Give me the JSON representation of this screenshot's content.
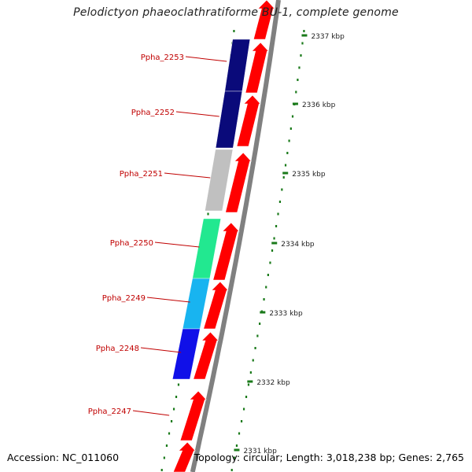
{
  "title": "Pelodictyon phaeoclathratiforme BU-1, complete genome",
  "footer": {
    "accession": "Accession: NC_011060",
    "topology": "Topology: circular; Length: 3,018,238 bp; Genes: 2,765"
  },
  "colors": {
    "gene_label": "#c00000",
    "forward_cds": "#ff0000",
    "tick": "#1a7a1a",
    "backbone": "#808080"
  },
  "scale_labels": [
    "2337 kbp",
    "2336 kbp",
    "2335 kbp",
    "2334 kbp",
    "2333 kbp",
    "2332 kbp",
    "2331 kbp"
  ],
  "genes": [
    {
      "label": "Ppha_2253",
      "color": "#0a0a7a",
      "icon": "cog-category-bar"
    },
    {
      "label": "Ppha_2252",
      "color": "#0a0a7a",
      "icon": "cog-category-bar"
    },
    {
      "label": "Ppha_2251",
      "color": "#c0c0c0",
      "icon": "cog-category-bar"
    },
    {
      "label": "Ppha_2250",
      "color": "#22e890",
      "icon": "cog-category-bar"
    },
    {
      "label": "Ppha_2249",
      "color": "#18b4f0",
      "icon": "cog-category-bar"
    },
    {
      "label": "Ppha_2248",
      "color": "#1010e8",
      "icon": "cog-category-bar"
    },
    {
      "label": "Ppha_2247",
      "color": "",
      "icon": "cog-category-bar"
    }
  ]
}
